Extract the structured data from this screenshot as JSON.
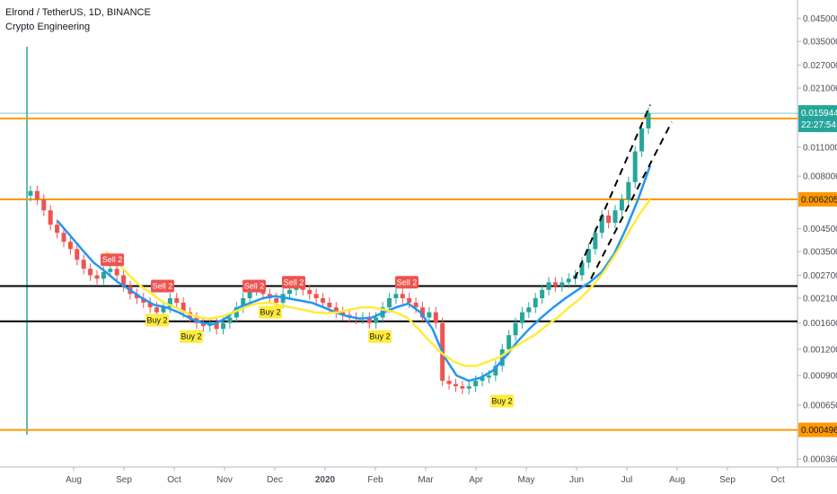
{
  "header": {
    "title": "Elrond / TetherUS, 1D, BINANCE",
    "indicator": "Crypto Engineering"
  },
  "colors": {
    "up": "#26a69a",
    "down": "#ef5350",
    "ma_fast": "#2196f3",
    "ma_slow": "#ffeb3b",
    "level": "#ff9800",
    "sr": "#000000",
    "price_tag": "#26a69a",
    "sell": "#ef5350",
    "buy": "#ffeb3b"
  },
  "chart_data": {
    "type": "candlestick",
    "title": "Elrond / TetherUS, 1D, BINANCE",
    "y_scale": "log",
    "ylim": [
      0.00033,
      0.05
    ],
    "x_labels": [
      "Aug",
      "Sep",
      "Oct",
      "Nov",
      "Dec",
      "2020",
      "Feb",
      "Mar",
      "Apr",
      "May",
      "Jun",
      "Jul",
      "Aug",
      "Sep",
      "Oct"
    ],
    "y_ticks": [
      "0.045000",
      "0.035000",
      "0.027000",
      "0.021000",
      "0.015944",
      "0.015054",
      "0.011000",
      "0.008000",
      "0.006205",
      "0.004500",
      "0.003500",
      "0.002700",
      "0.002100",
      "0.001600",
      "0.001200",
      "0.000900",
      "0.000650",
      "0.000496",
      "0.000360"
    ],
    "current_price": {
      "value": "0.015944",
      "countdown": "22:27:54"
    },
    "levels": [
      {
        "value": 0.015054,
        "label": "0.015054"
      },
      {
        "value": 0.006205,
        "label": "0.006205"
      },
      {
        "value": 0.000496,
        "label": "0.000496"
      }
    ],
    "support_resistance": [
      {
        "from": 0.0024,
        "to": 0.0024
      },
      {
        "from": 0.00163,
        "to": 0.00163
      }
    ],
    "closes": [
      0.0068,
      0.0062,
      0.0055,
      0.0047,
      0.0043,
      0.0039,
      0.0036,
      0.0032,
      0.0029,
      0.0027,
      0.0026,
      0.0028,
      0.0029,
      0.0027,
      0.0024,
      0.0022,
      0.0021,
      0.002,
      0.0019,
      0.0018,
      0.0019,
      0.0021,
      0.002,
      0.0018,
      0.0017,
      0.0016,
      0.00155,
      0.0016,
      0.0015,
      0.0016,
      0.0017,
      0.0019,
      0.0021,
      0.0023,
      0.0024,
      0.0022,
      0.0021,
      0.002,
      0.0022,
      0.0023,
      0.0025,
      0.0023,
      0.0022,
      0.0021,
      0.002,
      0.0019,
      0.0018,
      0.00175,
      0.0017,
      0.00168,
      0.0017,
      0.0016,
      0.0017,
      0.0019,
      0.0021,
      0.0022,
      0.0021,
      0.002,
      0.0019,
      0.0017,
      0.0018,
      0.0016,
      0.00085,
      0.00082,
      0.0008,
      0.00078,
      0.0008,
      0.00085,
      0.00088,
      0.0009,
      0.001,
      0.0012,
      0.0014,
      0.0016,
      0.0018,
      0.0019,
      0.0021,
      0.0023,
      0.0025,
      0.0024,
      0.0025,
      0.0026,
      0.0027,
      0.0031,
      0.0036,
      0.0043,
      0.0052,
      0.0048,
      0.0055,
      0.0062,
      0.0075,
      0.0105,
      0.0135,
      0.016
    ],
    "series": [
      {
        "color": "#2196f3",
        "values": [
          0.0049,
          0.0042,
          0.0036,
          0.0031,
          0.0028,
          0.0025,
          0.0023,
          0.0021,
          0.00195,
          0.0019,
          0.0018,
          0.00168,
          0.0016,
          0.00158,
          0.0017,
          0.0019,
          0.002,
          0.0021,
          0.00215,
          0.0021,
          0.00205,
          0.002,
          0.0019,
          0.0018,
          0.00172,
          0.00168,
          0.0017,
          0.0018,
          0.0019,
          0.00198,
          0.0018,
          0.0015,
          0.0011,
          0.0009,
          0.00085,
          0.00088,
          0.00095,
          0.0011,
          0.0013,
          0.0015,
          0.0017,
          0.0019,
          0.0021,
          0.0023,
          0.0025,
          0.0028,
          0.0034,
          0.0045,
          0.0062,
          0.009
        ]
      },
      {
        "color": "#ffeb3b",
        "values": [
          0.0035,
          0.0031,
          0.0027,
          0.0024,
          0.0022,
          0.002,
          0.0019,
          0.00178,
          0.0017,
          0.00168,
          0.00172,
          0.0018,
          0.0019,
          0.00198,
          0.002,
          0.00195,
          0.0019,
          0.00185,
          0.0018,
          0.00178,
          0.0018,
          0.00185,
          0.0019,
          0.0019,
          0.00185,
          0.0018,
          0.0017,
          0.0015,
          0.0013,
          0.00115,
          0.00105,
          0.001,
          0.001,
          0.00105,
          0.0011,
          0.0012,
          0.0013,
          0.0014,
          0.00155,
          0.0017,
          0.0019,
          0.0021,
          0.0024,
          0.0028,
          0.0034,
          0.0042,
          0.0052,
          0.0062
        ]
      }
    ],
    "signals": [
      {
        "label": "Sell 2",
        "type": "sell"
      },
      {
        "label": "Sell 2",
        "type": "sell"
      },
      {
        "label": "Sell 2",
        "type": "sell"
      },
      {
        "label": "Sell 2",
        "type": "sell"
      },
      {
        "label": "Sell 2",
        "type": "sell"
      },
      {
        "label": "Buy 2",
        "type": "buy"
      },
      {
        "label": "Buy 2",
        "type": "buy"
      },
      {
        "label": "Buy 2",
        "type": "buy"
      },
      {
        "label": "Buy 2",
        "type": "buy"
      },
      {
        "label": "Buy 2",
        "type": "buy"
      }
    ]
  }
}
